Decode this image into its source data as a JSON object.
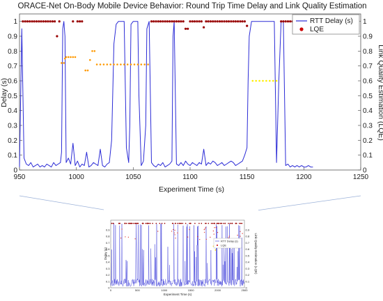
{
  "chart_data": [
    {
      "type": "line",
      "title": "ORACE-Net On-Body Mobile Device Behavior: Round Trip Time Delay and Link Quality Estimation",
      "xlabel": "Experiment Time (s)",
      "ylabel": "Delay (s)",
      "y2label": "Link Quality Estimation (LQE)",
      "xlim": [
        950,
        1250
      ],
      "ylim": [
        0,
        1.05
      ],
      "y2lim": [
        0,
        1.05
      ],
      "xticks": [
        "950",
        "1000",
        "1050",
        "1100",
        "1150",
        "1200",
        "1250"
      ],
      "yticks": [
        "0",
        "0.1",
        "0.2",
        "0.3",
        "0.4",
        "0.5",
        "0.6",
        "0.7",
        "0.8",
        "0.9",
        "1"
      ],
      "y2ticks": [
        "0",
        "0.1",
        "0.2",
        "0.3",
        "0.4",
        "0.5",
        "0.6",
        "0.7",
        "0.8",
        "0.9",
        "1"
      ],
      "legend_position": "top-right",
      "colors": {
        "rtt": "#2b2bd6",
        "lqe_high": "#990000",
        "lqe_mid": "#ff9900",
        "lqe_low": "#ffee00"
      },
      "series": [
        {
          "name": "RTT Delay (s)",
          "kind": "line",
          "x": [
            950,
            952,
            954,
            956,
            958,
            960,
            962,
            964,
            966,
            968,
            970,
            972,
            974,
            976,
            978,
            980,
            982,
            984,
            986,
            987,
            988,
            989,
            990,
            991,
            993,
            995,
            997,
            999,
            1001,
            1003,
            1005,
            1007,
            1009,
            1011,
            1013,
            1015,
            1017,
            1019,
            1021,
            1023,
            1025,
            1027,
            1029,
            1031,
            1033,
            1035,
            1037,
            1040,
            1042,
            1044,
            1046,
            1047,
            1048,
            1050,
            1052,
            1054,
            1055,
            1057,
            1059,
            1061,
            1062,
            1064,
            1066,
            1068,
            1070,
            1072,
            1074,
            1076,
            1078,
            1080,
            1082,
            1084,
            1085,
            1086,
            1088,
            1090,
            1092,
            1094,
            1096,
            1098,
            1100,
            1102,
            1104,
            1106,
            1108,
            1110,
            1112,
            1114,
            1116,
            1118,
            1120,
            1122,
            1124,
            1126,
            1128,
            1130,
            1132,
            1134,
            1136,
            1138,
            1140,
            1142,
            1144,
            1146,
            1148,
            1150,
            1151,
            1152,
            1154,
            1156,
            1158,
            1160,
            1162,
            1164,
            1166,
            1168,
            1170,
            1172,
            1174,
            1176,
            1178,
            1180,
            1182,
            1184,
            1186,
            1188,
            1190,
            1192,
            1194,
            1196,
            1198,
            1200,
            1202,
            1204,
            1206,
            1208
          ],
          "values": [
            0.02,
            0.95,
            0.08,
            0.04,
            0.03,
            0.05,
            0.02,
            0.03,
            0.04,
            0.02,
            0.03,
            0.02,
            0.04,
            0.03,
            0.02,
            0.05,
            0.03,
            0.04,
            0.05,
            0.12,
            0.95,
            1.0,
            0.9,
            0.05,
            0.08,
            0.04,
            0.18,
            0.03,
            0.06,
            0.02,
            0.04,
            0.03,
            0.12,
            0.02,
            0.03,
            0.05,
            0.04,
            0.03,
            0.14,
            0.03,
            0.02,
            0.04,
            0.05,
            0.2,
            0.85,
            0.98,
            1.0,
            1.0,
            1.0,
            0.15,
            0.05,
            0.3,
            0.98,
            1.0,
            1.0,
            1.0,
            0.5,
            0.03,
            0.06,
            0.3,
            0.95,
            1.0,
            0.05,
            0.03,
            0.02,
            0.04,
            0.03,
            0.05,
            0.02,
            0.03,
            0.04,
            0.06,
            0.9,
            1.0,
            0.04,
            0.03,
            0.05,
            0.03,
            0.06,
            0.04,
            0.03,
            0.05,
            0.04,
            0.03,
            0.05,
            0.04,
            0.14,
            0.03,
            0.05,
            0.04,
            0.06,
            0.05,
            0.03,
            0.04,
            0.05,
            0.03,
            0.04,
            0.05,
            0.06,
            0.05,
            0.03,
            0.04,
            0.05,
            0.06,
            0.1,
            0.15,
            0.6,
            0.9,
            1.0,
            1.0,
            1.0,
            1.0,
            1.0,
            1.0,
            1.0,
            1.0,
            1.0,
            1.0,
            1.0,
            0.05,
            0.6,
            1.0,
            1.0,
            0.03,
            0.04,
            0.02,
            0.03,
            0.02,
            0.03,
            0.02,
            0.03,
            0.02,
            0.02,
            0.03,
            0.02,
            0.02
          ]
        },
        {
          "name": "LQE",
          "kind": "scatter",
          "points": [
            [
              953,
              1.0
            ],
            [
              955,
              1.0
            ],
            [
              957,
              1.0
            ],
            [
              959,
              1.0
            ],
            [
              961,
              1.0
            ],
            [
              963,
              1.0
            ],
            [
              965,
              1.0
            ],
            [
              967,
              1.0
            ],
            [
              969,
              1.0
            ],
            [
              971,
              1.0
            ],
            [
              973,
              1.0
            ],
            [
              975,
              1.0
            ],
            [
              977,
              1.0
            ],
            [
              979,
              1.0
            ],
            [
              981,
              1.0
            ],
            [
              983,
              0.9
            ],
            [
              985,
              1.0
            ],
            [
              997,
              1.0
            ],
            [
              987,
              0.72
            ],
            [
              989,
              0.72
            ],
            [
              990,
              0.75
            ],
            [
              991,
              0.76
            ],
            [
              993,
              0.76
            ],
            [
              995,
              0.76
            ],
            [
              997,
              0.76
            ],
            [
              999,
              0.76
            ],
            [
              1001,
              1.0
            ],
            [
              1003,
              1.0
            ],
            [
              1005,
              1.0
            ],
            [
              1008,
              0.67
            ],
            [
              1010,
              0.67
            ],
            [
              1012,
              0.74
            ],
            [
              1014,
              0.8
            ],
            [
              1016,
              0.8
            ],
            [
              1018,
              0.71
            ],
            [
              1021,
              0.71
            ],
            [
              1024,
              0.71
            ],
            [
              1027,
              0.71
            ],
            [
              1030,
              0.71
            ],
            [
              1033,
              0.71
            ],
            [
              1036,
              0.71
            ],
            [
              1039,
              0.71
            ],
            [
              1042,
              0.71
            ],
            [
              1045,
              0.71
            ],
            [
              1048,
              0.71
            ],
            [
              1051,
              0.71
            ],
            [
              1054,
              0.71
            ],
            [
              1057,
              0.71
            ],
            [
              1060,
              0.71
            ],
            [
              1063,
              0.71
            ],
            [
              1066,
              1.0
            ],
            [
              1068,
              1.0
            ],
            [
              1070,
              1.0
            ],
            [
              1072,
              1.0
            ],
            [
              1074,
              1.0
            ],
            [
              1076,
              1.0
            ],
            [
              1078,
              1.0
            ],
            [
              1080,
              1.0
            ],
            [
              1082,
              1.0
            ],
            [
              1084,
              1.0
            ],
            [
              1086,
              1.0
            ],
            [
              1088,
              1.0
            ],
            [
              1090,
              1.0
            ],
            [
              1092,
              1.0
            ],
            [
              1094,
              1.0
            ],
            [
              1096,
              0.95
            ],
            [
              1098,
              0.95
            ],
            [
              1100,
              1.0
            ],
            [
              1102,
              1.0
            ],
            [
              1104,
              1.0
            ],
            [
              1106,
              1.0
            ],
            [
              1108,
              1.0
            ],
            [
              1110,
              1.0
            ],
            [
              1112,
              0.96
            ],
            [
              1114,
              1.0
            ],
            [
              1116,
              1.0
            ],
            [
              1118,
              1.0
            ],
            [
              1120,
              1.0
            ],
            [
              1122,
              1.0
            ],
            [
              1124,
              1.0
            ],
            [
              1126,
              1.0
            ],
            [
              1128,
              1.0
            ],
            [
              1130,
              1.0
            ],
            [
              1132,
              1.0
            ],
            [
              1134,
              1.0
            ],
            [
              1136,
              1.0
            ],
            [
              1138,
              1.0
            ],
            [
              1140,
              1.0
            ],
            [
              1142,
              1.0
            ],
            [
              1144,
              1.0
            ],
            [
              1146,
              1.0
            ],
            [
              1148,
              1.0
            ],
            [
              1150,
              0.97
            ],
            [
              1155,
              0.6
            ],
            [
              1158,
              0.6
            ],
            [
              1161,
              0.6
            ],
            [
              1164,
              0.6
            ],
            [
              1167,
              0.6
            ],
            [
              1170,
              0.6
            ],
            [
              1173,
              0.6
            ],
            [
              1176,
              0.6
            ],
            [
              1180,
              1.0
            ],
            [
              1182,
              1.0
            ],
            [
              1184,
              1.0
            ],
            [
              1186,
              1.0
            ],
            [
              1188,
              1.0
            ],
            [
              1190,
              1.0
            ],
            [
              1192,
              1.0
            ],
            [
              1194,
              1.0
            ],
            [
              1196,
              1.0
            ],
            [
              1198,
              1.0
            ],
            [
              1200,
              1.0
            ]
          ]
        }
      ]
    },
    {
      "type": "line",
      "title": "",
      "xlabel": "Experiment Time (s)",
      "ylabel": "Delay (s)",
      "y2label": "Link Quality Estimation (LQE)",
      "xlim": [
        0,
        2500
      ],
      "ylim": [
        0,
        1.05
      ],
      "xticks": [
        "0",
        "500",
        "1000",
        "1500",
        "2000",
        "2500"
      ],
      "yticks": [
        "0",
        "0.1",
        "0.2",
        "0.3",
        "0.4",
        "0.5",
        "0.6",
        "0.7",
        "0.8",
        "0.9"
      ],
      "y2ticks": [
        "0",
        "0.1",
        "0.2",
        "0.3",
        "0.4",
        "0.5",
        "0.6",
        "0.7",
        "0.8",
        "0.9"
      ],
      "legend_position": "center-right",
      "series": [
        {
          "name": "RTT Delay (s)",
          "kind": "line"
        },
        {
          "name": "LQE",
          "kind": "scatter"
        }
      ]
    }
  ]
}
